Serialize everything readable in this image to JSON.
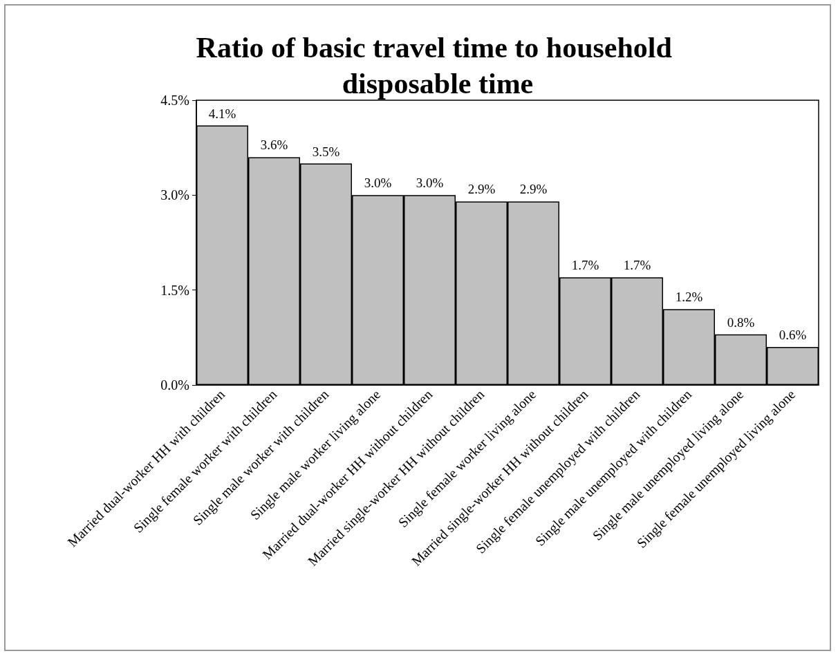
{
  "chart_data": {
    "type": "bar",
    "title": "Ratio of basic travel time to household disposable time",
    "categories": [
      "Married dual-worker HH with children",
      "Single female worker with children",
      "Single male worker with children",
      "Single male worker living alone",
      "Married dual-worker HH without children",
      "Married single-worker HH without children",
      "Single female worker living alone",
      "Married single-worker HH without children",
      "Single female unemployed with children",
      "Single male unemployed with children",
      "Single male unemployed living alone",
      "Single female unemployed living alone"
    ],
    "values": [
      4.1,
      3.6,
      3.5,
      3.0,
      3.0,
      2.9,
      2.9,
      1.7,
      1.7,
      1.2,
      0.8,
      0.6
    ],
    "value_labels": [
      "4.1%",
      "3.6%",
      "3.5%",
      "3.0%",
      "3.0%",
      "2.9%",
      "2.9%",
      "1.7%",
      "1.7%",
      "1.2%",
      "0.8%",
      "0.6%"
    ],
    "color": "#c0c0c0",
    "ylim": [
      0,
      4.5
    ],
    "yticks": [
      {
        "value": 0,
        "label": "0.0%"
      },
      {
        "value": 1.5,
        "label": "1.5%"
      },
      {
        "value": 3,
        "label": "3.0%"
      },
      {
        "value": 4.5,
        "label": "4.5%"
      }
    ],
    "grid": false
  }
}
